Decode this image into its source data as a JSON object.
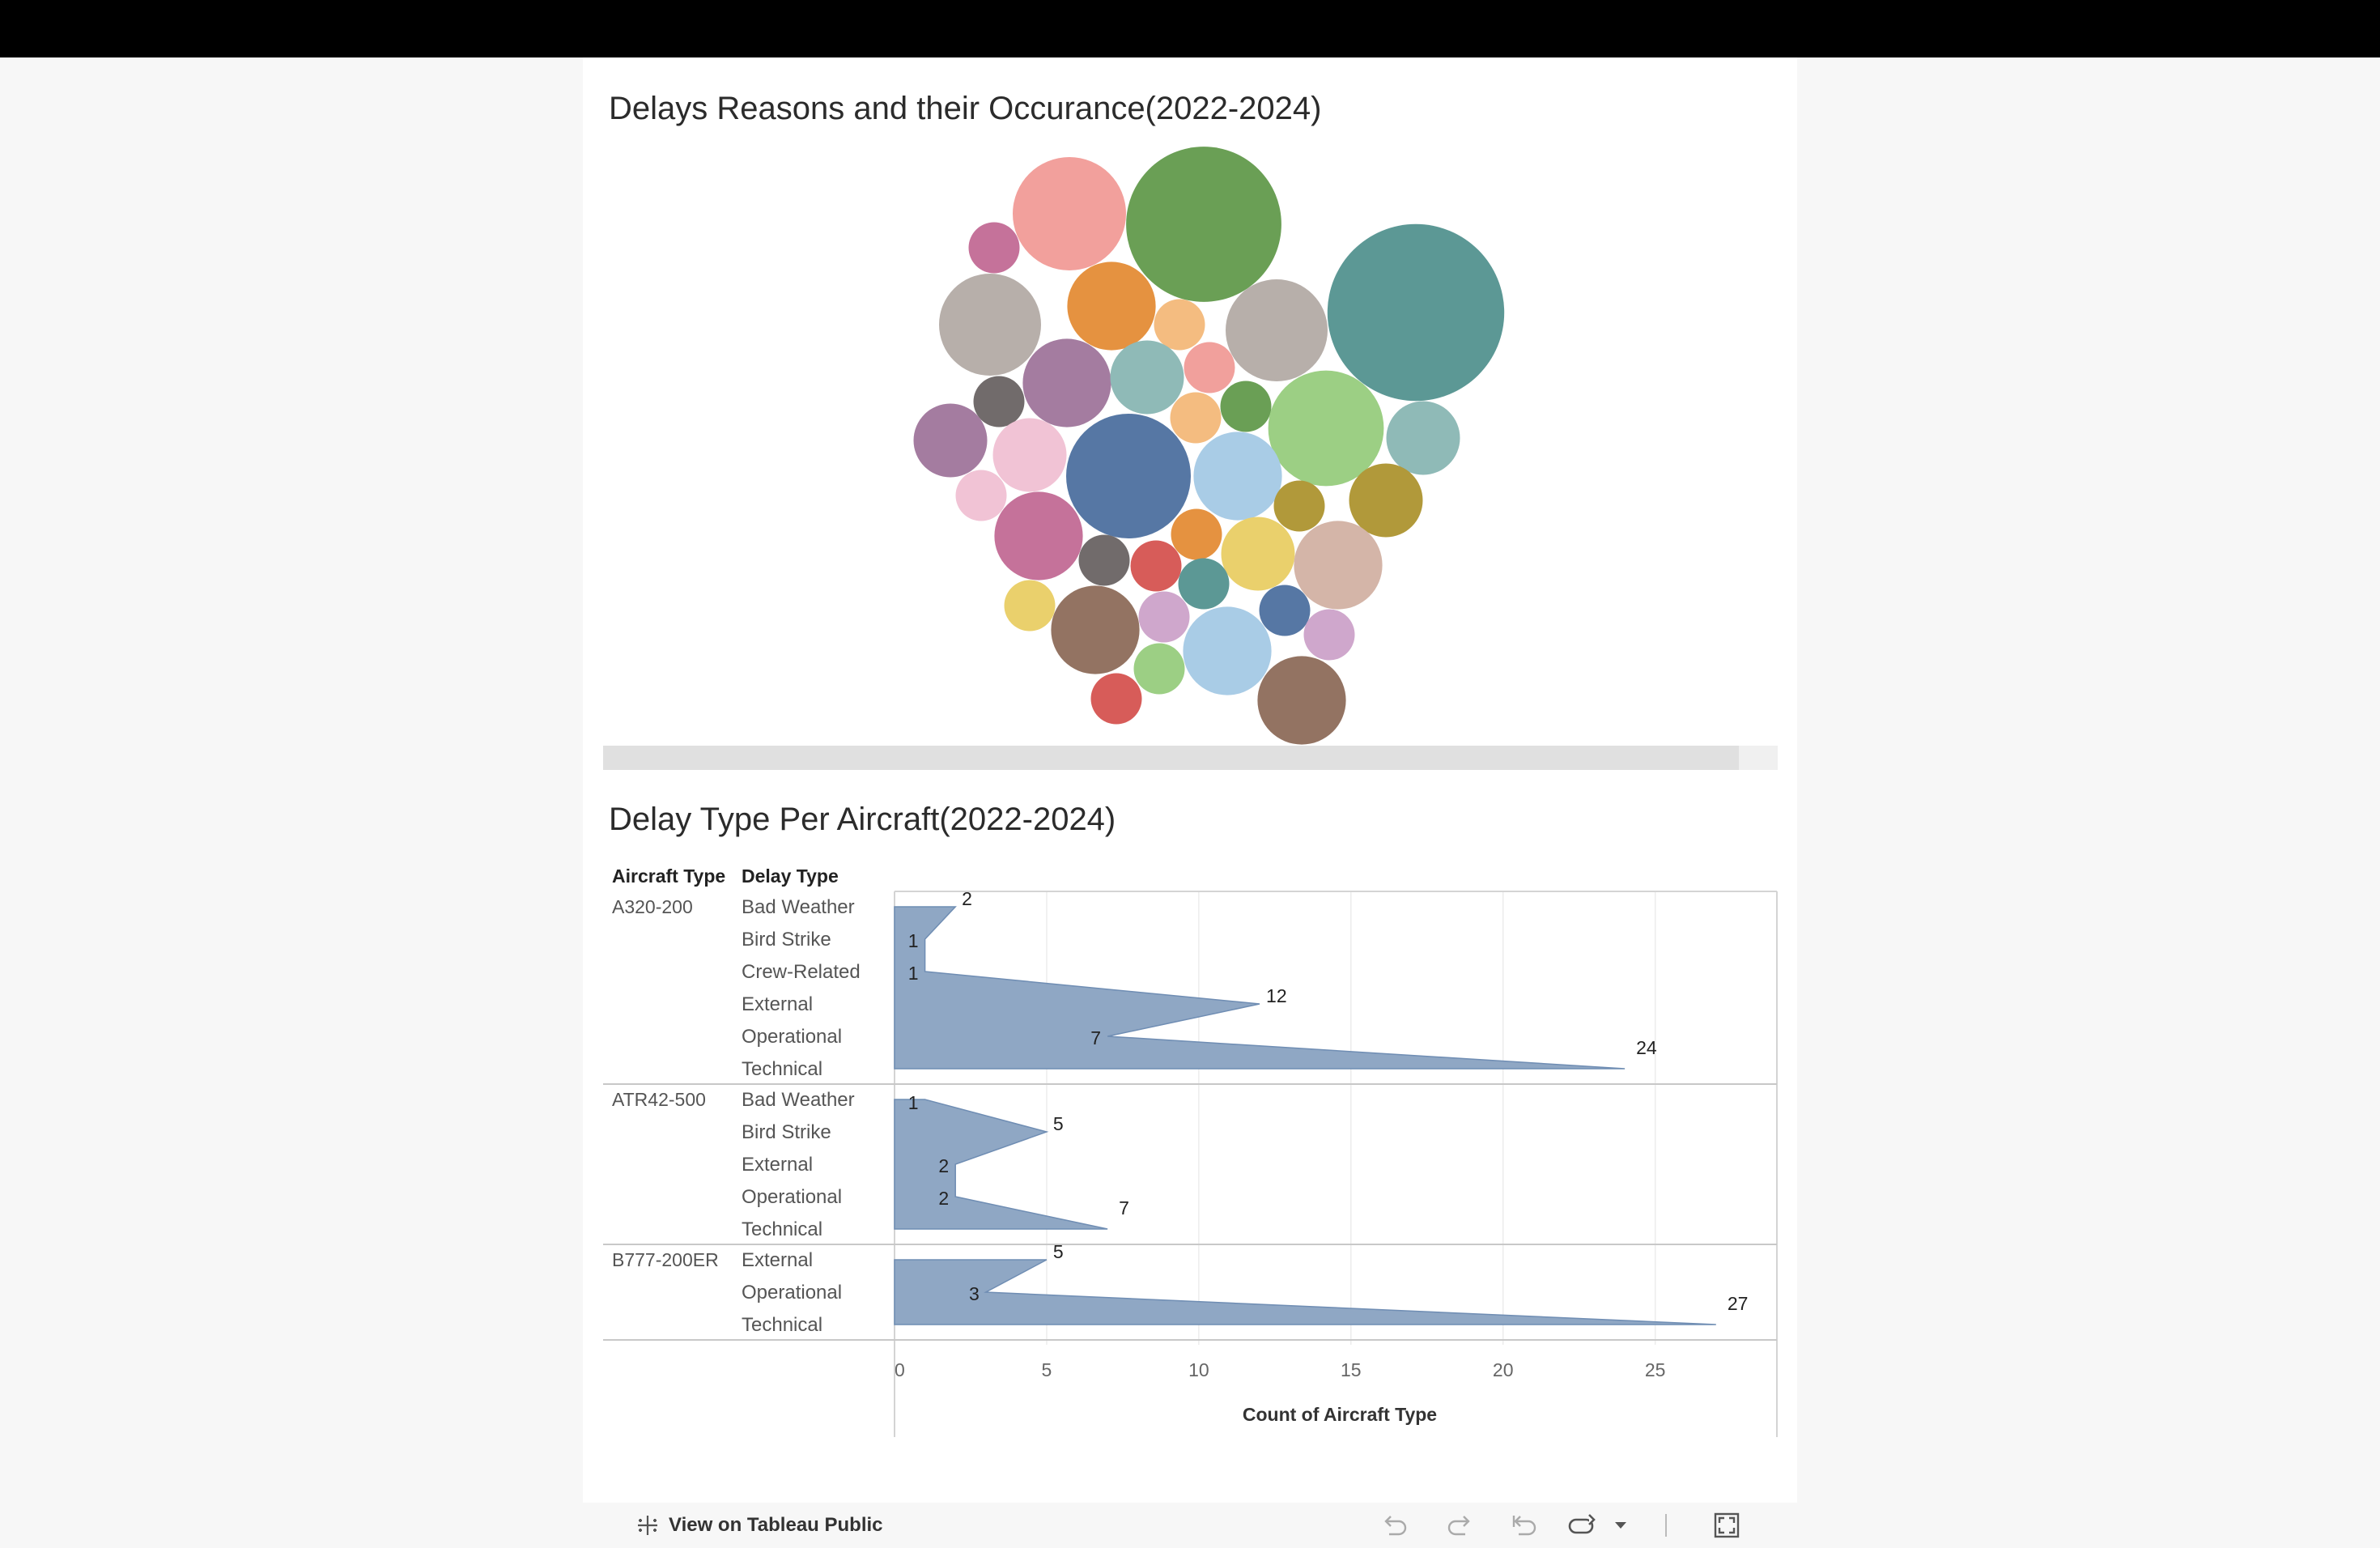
{
  "bubble_chart": {
    "title": "Delays Reasons and their Occurance(2022-2024)",
    "chart_data": {
      "type": "packed-bubble",
      "title": "Delays Reasons and their Occurance(2022-2024)",
      "bubbles": [
        {
          "color": "#f2a09c",
          "size": 1.0
        },
        {
          "color": "#6a9f55",
          "size": 1.37
        },
        {
          "color": "#c5729a",
          "size": 0.45
        },
        {
          "color": "#b7afaa",
          "size": 0.9
        },
        {
          "color": "#e59240",
          "size": 0.78
        },
        {
          "color": "#f4bc80",
          "size": 0.45
        },
        {
          "color": "#b7afaa",
          "size": 0.9
        },
        {
          "color": "#5c9895",
          "size": 1.56
        },
        {
          "color": "#a47ca0",
          "size": 0.78
        },
        {
          "color": "#8fbab7",
          "size": 0.65
        },
        {
          "color": "#f1a09c",
          "size": 0.45
        },
        {
          "color": "#716b6b",
          "size": 0.45
        },
        {
          "color": "#f4bc80",
          "size": 0.45
        },
        {
          "color": "#6a9f55",
          "size": 0.45
        },
        {
          "color": "#9ccf84",
          "size": 1.02
        },
        {
          "color": "#8fbab7",
          "size": 0.65
        },
        {
          "color": "#a47ca0",
          "size": 0.65
        },
        {
          "color": "#f1c3d5",
          "size": 0.65
        },
        {
          "color": "#5677a4",
          "size": 1.1
        },
        {
          "color": "#a9cce6",
          "size": 0.78
        },
        {
          "color": "#b1993a",
          "size": 0.45
        },
        {
          "color": "#b1993a",
          "size": 0.65
        },
        {
          "color": "#f1c3d5",
          "size": 0.45
        },
        {
          "color": "#c5729a",
          "size": 0.78
        },
        {
          "color": "#e59240",
          "size": 0.45
        },
        {
          "color": "#ead06c",
          "size": 0.65
        },
        {
          "color": "#d4b5a8",
          "size": 0.78
        },
        {
          "color": "#716b6b",
          "size": 0.45
        },
        {
          "color": "#d75c59",
          "size": 0.45
        },
        {
          "color": "#5c9895",
          "size": 0.45
        },
        {
          "color": "#ead06c",
          "size": 0.45
        },
        {
          "color": "#937362",
          "size": 0.78
        },
        {
          "color": "#cfa7cc",
          "size": 0.45
        },
        {
          "color": "#5677a4",
          "size": 0.45
        },
        {
          "color": "#a9cce6",
          "size": 0.78
        },
        {
          "color": "#cfa7cc",
          "size": 0.45
        },
        {
          "color": "#9ccf84",
          "size": 0.45
        },
        {
          "color": "#d75c59",
          "size": 0.45
        },
        {
          "color": "#937362",
          "size": 0.78
        }
      ]
    }
  },
  "delay_chart": {
    "title": "Delay Type Per Aircraft(2022-2024)",
    "chart_data": {
      "type": "area",
      "title": "Delay Type Per Aircraft(2022-2024)",
      "row_headers": [
        "Aircraft Type",
        "Delay Type"
      ],
      "xlabel": "Count of Aircraft Type",
      "xlim": [
        0,
        29
      ],
      "xticks": [
        0,
        5,
        10,
        15,
        20,
        25
      ],
      "color": "#8fa7c4",
      "groups": [
        {
          "aircraft": "A320-200",
          "categories": [
            "Bad Weather",
            "Bird Strike",
            "Crew-Related",
            "External",
            "Operational",
            "Technical"
          ],
          "values": [
            2,
            1,
            1,
            12,
            7,
            24
          ]
        },
        {
          "aircraft": "ATR42-500",
          "categories": [
            "Bad Weather",
            "Bird Strike",
            "External",
            "Operational",
            "Technical"
          ],
          "values": [
            1,
            5,
            2,
            2,
            7
          ]
        },
        {
          "aircraft": "B777-200ER",
          "categories": [
            "External",
            "Operational",
            "Technical"
          ],
          "values": [
            5,
            3,
            27
          ]
        }
      ]
    }
  },
  "footer": {
    "view_link": "View on Tableau Public",
    "icons": [
      "undo-icon",
      "redo-icon",
      "revert-icon",
      "share-icon",
      "dropdown-icon",
      "fullscreen-icon"
    ]
  }
}
